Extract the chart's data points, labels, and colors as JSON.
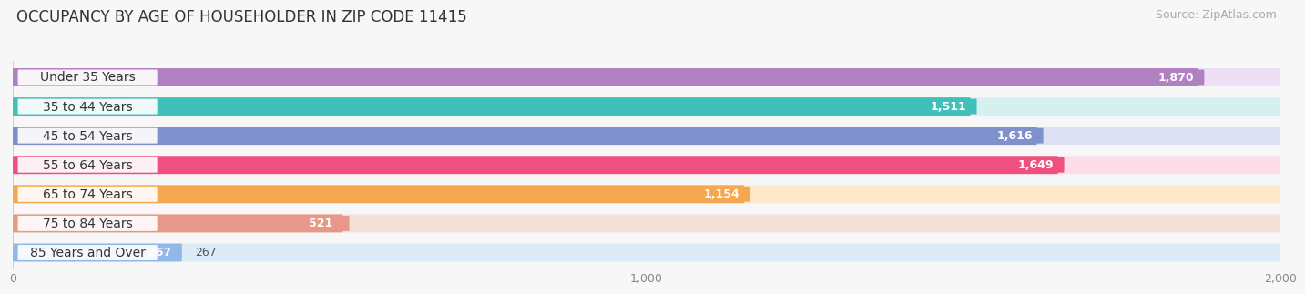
{
  "title": "OCCUPANCY BY AGE OF HOUSEHOLDER IN ZIP CODE 11415",
  "source": "Source: ZipAtlas.com",
  "categories": [
    "Under 35 Years",
    "35 to 44 Years",
    "45 to 54 Years",
    "55 to 64 Years",
    "65 to 74 Years",
    "75 to 84 Years",
    "85 Years and Over"
  ],
  "values": [
    1870,
    1511,
    1616,
    1649,
    1154,
    521,
    267
  ],
  "bar_colors": [
    "#b080c0",
    "#40bfbb",
    "#8090cc",
    "#f05080",
    "#f5a850",
    "#e89888",
    "#90b8e8"
  ],
  "bar_bg_colors": [
    "#ede0f5",
    "#d5f0ee",
    "#dde0f2",
    "#fddde8",
    "#fde8cc",
    "#f5e0d8",
    "#ddeaf8"
  ],
  "xlim": [
    0,
    2000
  ],
  "xticks": [
    0,
    1000,
    2000
  ],
  "xticklabels": [
    "0",
    "1,000",
    "2,000"
  ],
  "title_fontsize": 12,
  "source_fontsize": 9,
  "value_fontsize": 9,
  "label_fontsize": 10,
  "background_color": "#f7f7f7"
}
